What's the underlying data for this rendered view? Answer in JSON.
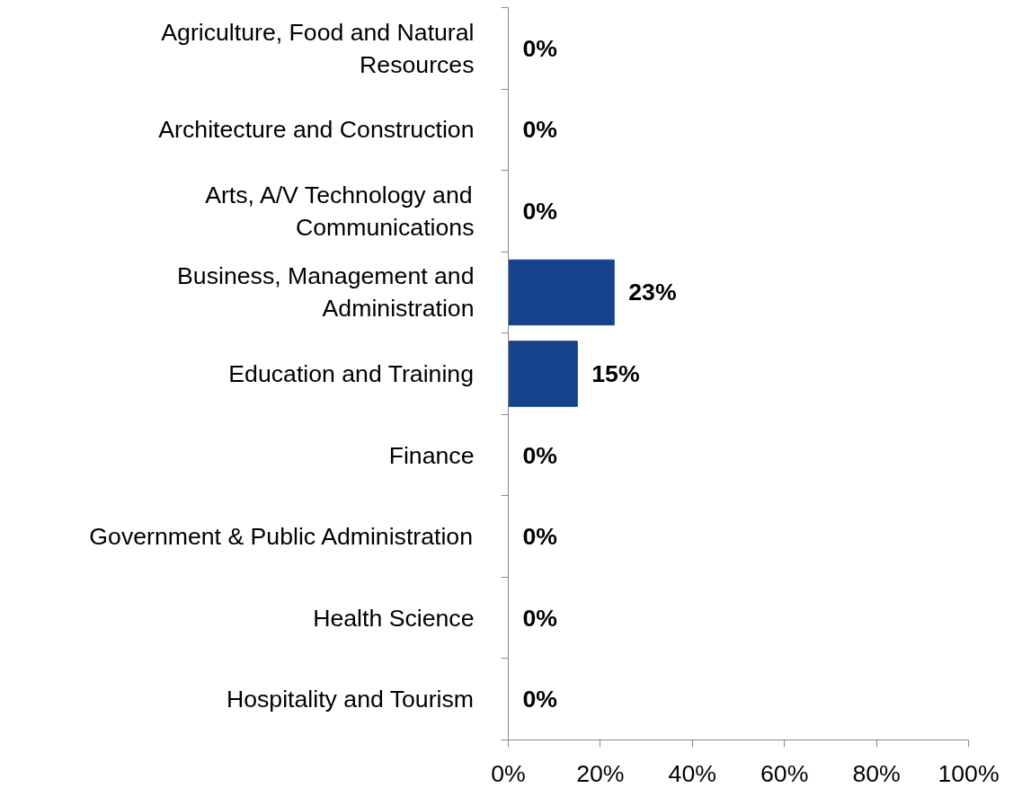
{
  "chart_data": {
    "type": "bar",
    "orientation": "horizontal",
    "categories": [
      "Agriculture, Food and Natural Resources",
      "Architecture and Construction",
      "Arts, A/V Technology and Communications",
      "Business, Management and Administration",
      "Education and Training",
      "Finance",
      "Government & Public Administration",
      "Health Science",
      "Hospitality and Tourism"
    ],
    "values": [
      0,
      0,
      0,
      23,
      15,
      0,
      0,
      0,
      0
    ],
    "value_labels": [
      "0%",
      "0%",
      "0%",
      "23%",
      "15%",
      "0%",
      "0%",
      "0%",
      "0%"
    ],
    "color": "#17428c",
    "xlim": [
      0,
      100
    ],
    "xticks": [
      {
        "value": 0,
        "label": "0%"
      },
      {
        "value": 20,
        "label": "20%"
      },
      {
        "value": 40,
        "label": "40%"
      },
      {
        "value": 60,
        "label": "60%"
      },
      {
        "value": 80,
        "label": "80%"
      },
      {
        "value": 100,
        "label": "100%"
      }
    ],
    "grid": false
  }
}
